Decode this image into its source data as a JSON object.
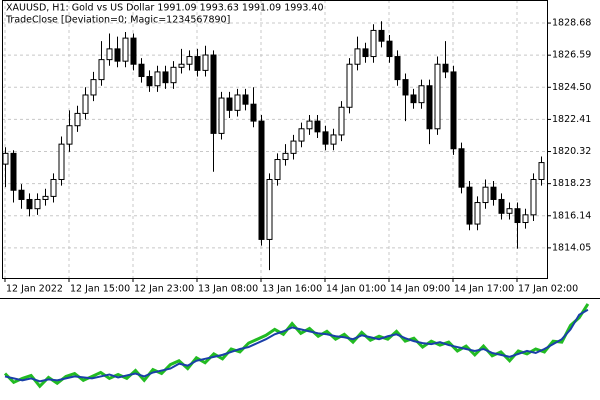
{
  "chart_data": [
    {
      "type": "candlestick",
      "title": "XAUUSD, H1:  Gold vs US Dollar  1991.09 1993.63 1991.09 1993.40",
      "subtitle": "TradeClose [Deviation=0; Magic=1234567890]",
      "categories": [
        "12 Jan 2022",
        null,
        null,
        null,
        null,
        null,
        null,
        null,
        "12 Jan 15:00",
        null,
        null,
        null,
        null,
        null,
        null,
        null,
        "12 Jan 23:00",
        null,
        null,
        null,
        null,
        null,
        null,
        null,
        "13 Jan 08:00",
        null,
        null,
        null,
        null,
        null,
        null,
        null,
        "13 Jan 16:00",
        null,
        null,
        null,
        null,
        null,
        null,
        null,
        "14 Jan 01:00",
        null,
        null,
        null,
        null,
        null,
        null,
        null,
        "14 Jan 09:00",
        null,
        null,
        null,
        null,
        null,
        null,
        null,
        "14 Jan 17:00",
        null,
        null,
        null,
        null,
        null,
        null,
        null,
        "17 Jan 02:00",
        null,
        null,
        null
      ],
      "open": [
        1819.5,
        1820.2,
        1817.8,
        1817.2,
        1816.6,
        1817.2,
        1817.4,
        1818.5,
        1820.8,
        1822.0,
        1822.8,
        1824.0,
        1825.0,
        1826.3,
        1827.0,
        1826.2,
        1827.7,
        1826.0,
        1825.2,
        1824.6,
        1825.5,
        1824.8,
        1825.8,
        1826.0,
        1826.5,
        1825.6,
        1826.6,
        1821.5,
        1823.8,
        1823.0,
        1824.0,
        1823.4,
        1822.3,
        1814.6,
        1818.5,
        1819.8,
        1820.2,
        1821.0,
        1821.8,
        1822.3,
        1821.6,
        1820.8,
        1821.4,
        1823.2,
        1826.0,
        1827.0,
        1826.5,
        1828.2,
        1827.5,
        1826.5,
        1825.0,
        1824.0,
        1823.5,
        1824.6,
        1821.8,
        1826.0,
        1825.5,
        1820.5,
        1818.0,
        1815.6,
        1817.0,
        1818.0,
        1817.2,
        1816.3,
        1816.6,
        1815.7,
        1816.2,
        1818.5
      ],
      "high": [
        1820.6,
        1820.4,
        1818.2,
        1817.6,
        1817.6,
        1817.9,
        1818.9,
        1821.3,
        1823.0,
        1823.3,
        1824.5,
        1825.5,
        1827.5,
        1828.0,
        1827.8,
        1828.1,
        1828.0,
        1826.4,
        1825.6,
        1825.9,
        1825.9,
        1826.2,
        1827.0,
        1826.9,
        1827.0,
        1827.2,
        1826.9,
        1824.2,
        1824.2,
        1824.4,
        1824.4,
        1824.5,
        1822.7,
        1818.9,
        1820.2,
        1820.8,
        1821.4,
        1822.2,
        1822.7,
        1822.7,
        1822.0,
        1821.8,
        1823.6,
        1826.4,
        1827.8,
        1827.4,
        1828.6,
        1828.8,
        1827.9,
        1826.9,
        1825.4,
        1824.4,
        1825.0,
        1825.0,
        1826.5,
        1827.5,
        1825.9,
        1820.9,
        1818.4,
        1817.4,
        1818.5,
        1818.4,
        1817.6,
        1817.0,
        1817.0,
        1816.6,
        1818.9,
        1820.0
      ],
      "low": [
        1818.0,
        1817.0,
        1816.6,
        1816.1,
        1816.2,
        1816.8,
        1817.0,
        1818.1,
        1820.3,
        1821.6,
        1822.4,
        1823.6,
        1824.6,
        1825.9,
        1825.8,
        1825.8,
        1825.6,
        1824.8,
        1824.2,
        1824.2,
        1824.4,
        1824.4,
        1825.4,
        1825.6,
        1825.2,
        1825.2,
        1819.0,
        1821.1,
        1822.5,
        1822.6,
        1823.0,
        1821.9,
        1814.2,
        1812.6,
        1818.1,
        1819.4,
        1819.8,
        1820.6,
        1821.4,
        1821.2,
        1820.4,
        1820.4,
        1821.0,
        1822.8,
        1825.6,
        1826.1,
        1826.1,
        1827.1,
        1826.1,
        1824.6,
        1822.3,
        1823.1,
        1823.1,
        1820.8,
        1821.4,
        1825.1,
        1820.1,
        1817.6,
        1815.2,
        1815.2,
        1816.6,
        1816.8,
        1815.9,
        1815.9,
        1814.0,
        1815.3,
        1815.8,
        1818.1
      ],
      "close": [
        1820.2,
        1817.8,
        1817.2,
        1816.6,
        1817.2,
        1817.4,
        1818.5,
        1820.8,
        1822.0,
        1822.8,
        1824.0,
        1825.0,
        1826.3,
        1827.0,
        1826.2,
        1827.7,
        1826.0,
        1825.2,
        1824.6,
        1825.5,
        1824.8,
        1825.8,
        1826.0,
        1826.5,
        1825.6,
        1826.6,
        1821.5,
        1823.8,
        1823.0,
        1824.0,
        1823.4,
        1822.3,
        1814.6,
        1818.5,
        1819.8,
        1820.2,
        1821.0,
        1821.8,
        1822.3,
        1821.6,
        1820.8,
        1821.4,
        1823.2,
        1826.0,
        1827.0,
        1826.5,
        1828.2,
        1827.5,
        1826.5,
        1825.0,
        1824.0,
        1823.5,
        1824.6,
        1821.8,
        1826.0,
        1825.5,
        1820.5,
        1818.0,
        1815.6,
        1817.0,
        1818.0,
        1817.2,
        1816.3,
        1816.6,
        1815.7,
        1816.2,
        1818.5,
        1819.6
      ],
      "up_color": "#ffffff",
      "down_color": "#000000",
      "wick_color": "#000000",
      "ylim": [
        1812.09,
        1830.18
      ],
      "yticks": [
        1814.05,
        1816.14,
        1818.23,
        1820.32,
        1822.41,
        {
          "value": 1824.5,
          "label": "1824.50"
        },
        1826.59,
        1828.68
      ],
      "grid": true
    },
    {
      "type": "line",
      "ylim": [
        0,
        100
      ],
      "series": [
        {
          "color": "#22bb22",
          "values": [
            25,
            16,
            20,
            23,
            12,
            21,
            15,
            22,
            25,
            18,
            22,
            26,
            20,
            24,
            20,
            28,
            18,
            29,
            25,
            34,
            38,
            30,
            41,
            36,
            45,
            40,
            50,
            47,
            56,
            60,
            64,
            70,
            65,
            76,
            66,
            71,
            63,
            68,
            60,
            65,
            57,
            67,
            59,
            63,
            60,
            68,
            58,
            61,
            52,
            58,
            54,
            57,
            48,
            53,
            44,
            53,
            43,
            47,
            38,
            48,
            45,
            50,
            47,
            58,
            57,
            74,
            82,
            96
          ]
        },
        {
          "color": "#1a3fa8",
          "values": [
            22,
            20,
            18,
            20,
            17,
            19,
            18,
            20,
            22,
            21,
            20,
            22,
            24,
            21,
            23,
            25,
            22,
            26,
            28,
            30,
            35,
            33,
            38,
            40,
            42,
            44,
            47,
            50,
            52,
            56,
            60,
            65,
            68,
            72,
            70,
            68,
            66,
            65,
            63,
            62,
            60,
            64,
            62,
            60,
            63,
            65,
            61,
            58,
            56,
            55,
            57,
            54,
            52,
            50,
            48,
            50,
            46,
            44,
            42,
            45,
            48,
            46,
            50,
            55,
            60,
            70,
            85,
            90
          ]
        }
      ]
    }
  ]
}
